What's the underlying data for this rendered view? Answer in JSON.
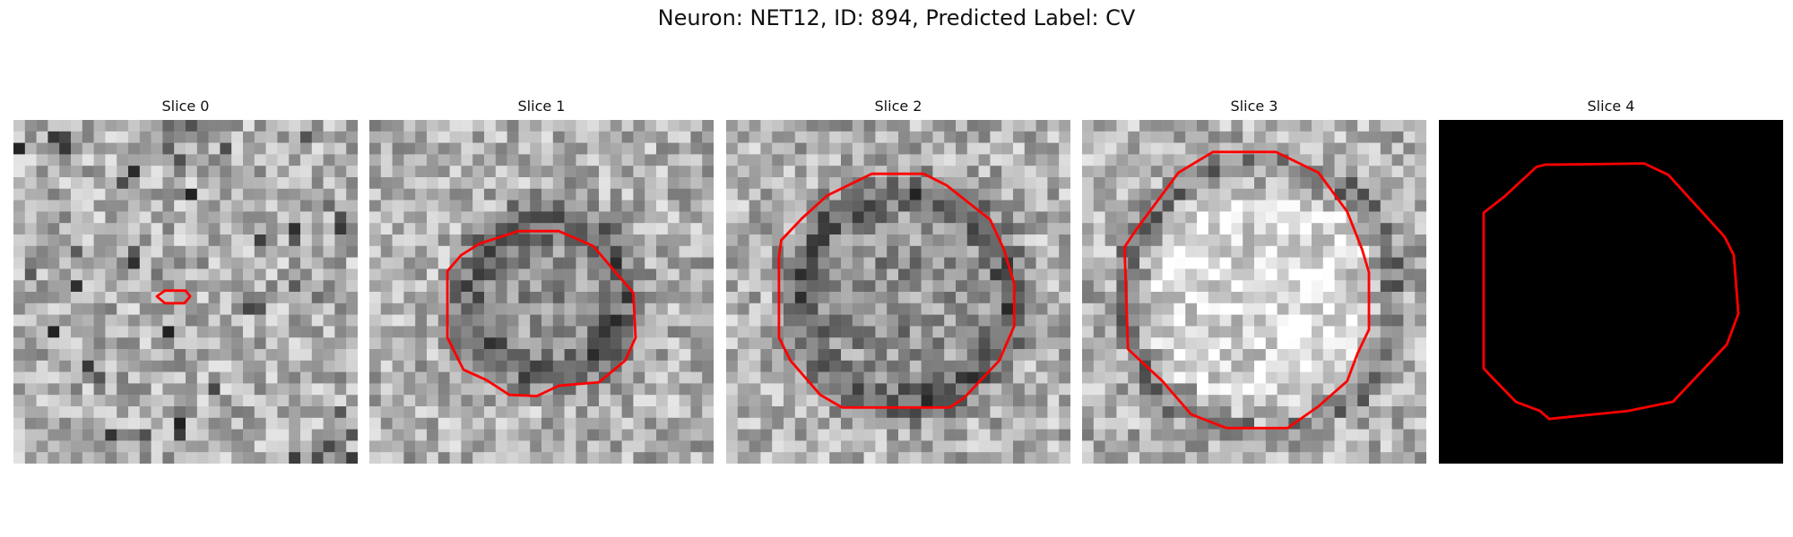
{
  "figure": {
    "title": "Neuron: NET12, ID: 894, Predicted Label: CV"
  },
  "colors": {
    "contour": "#ff0000",
    "mask_background": "#000000"
  },
  "slices": [
    {
      "label": "Slice 0",
      "kind": "grayscale-texture",
      "tone": "light"
    },
    {
      "label": "Slice 1",
      "kind": "grayscale-texture",
      "tone": "dark-ring"
    },
    {
      "label": "Slice 2",
      "kind": "grayscale-texture",
      "tone": "dark-ring"
    },
    {
      "label": "Slice 3",
      "kind": "grayscale-texture",
      "tone": "light-center"
    },
    {
      "label": "Slice 4",
      "kind": "binary-mask",
      "tone": "black"
    }
  ]
}
